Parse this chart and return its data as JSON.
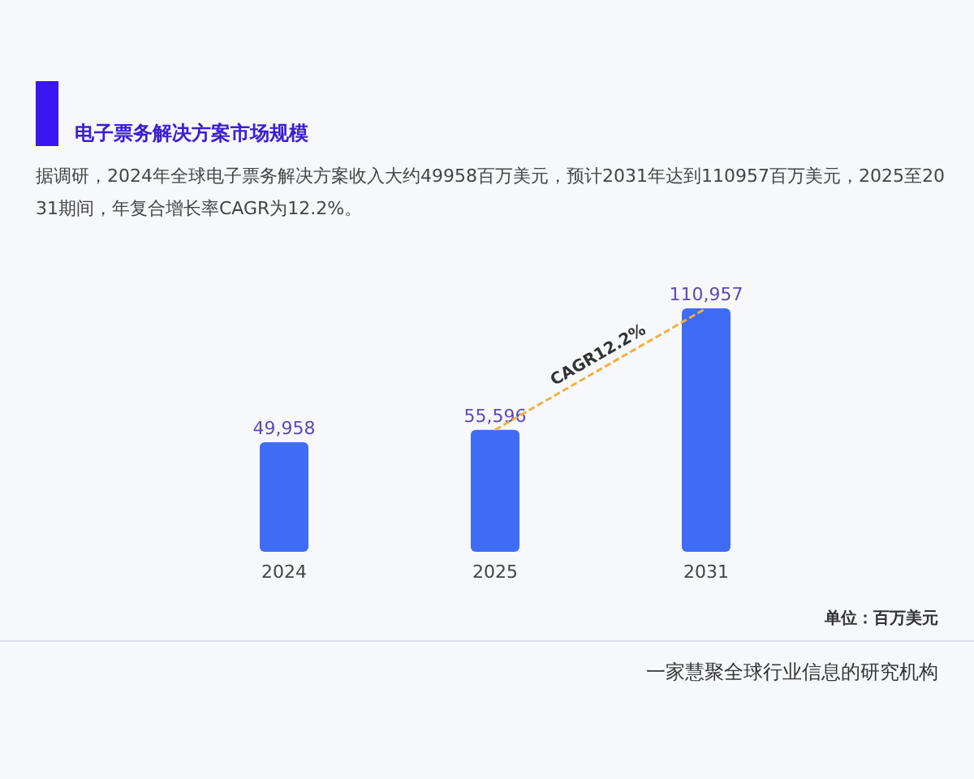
{
  "chart_data": {
    "type": "bar",
    "title": "电子票务解决方案市场规模",
    "subtitle": "据调研，2024年全球电子票务解决方案收入大约49958百万美元，预计2031年达到110957百万美元，2025至2031期间，年复合增长率CAGR为12.2%。",
    "categories": [
      "2024",
      "2025",
      "2031"
    ],
    "series": [
      {
        "color": "#3f6cf4",
        "values": [
          49958,
          55596,
          110957
        ],
        "value_labels": [
          "49,958",
          "55,596",
          "110,957"
        ]
      },
      {
        "type": "line",
        "values": [
          null,
          55596,
          110957
        ],
        "color": "#f2b13a",
        "line_style": "dashed"
      }
    ],
    "annotations": [
      "CAGR12.2%",
      "单位：百万美元",
      "一家慧聚全球行业信息的研究机构"
    ]
  }
}
